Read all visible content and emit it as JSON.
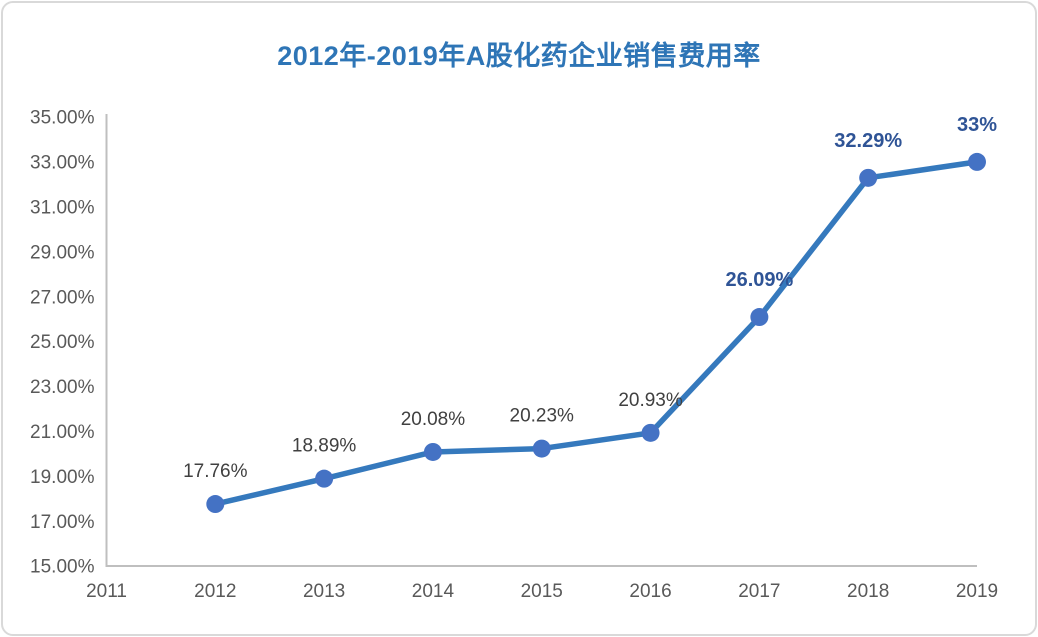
{
  "chart_data": {
    "type": "line",
    "title": "2012年-2019年A股化药企业销售费用率",
    "x_tick_labels": [
      "2011",
      "2012",
      "2013",
      "2014",
      "2015",
      "2016",
      "2017",
      "2018",
      "2019"
    ],
    "y_tick_labels": [
      "35.00%",
      "33.00%",
      "31.00%",
      "29.00%",
      "27.00%",
      "25.00%",
      "23.00%",
      "21.00%",
      "19.00%",
      "17.00%",
      "15.00%"
    ],
    "ylim": [
      15,
      35
    ],
    "y_step": 2,
    "grid": false,
    "legend": false,
    "series": [
      {
        "points": [
          {
            "x": "2012",
            "y": 17.76,
            "label": "17.76%",
            "emphasized": false
          },
          {
            "x": "2013",
            "y": 18.89,
            "label": "18.89%",
            "emphasized": false
          },
          {
            "x": "2014",
            "y": 20.08,
            "label": "20.08%",
            "emphasized": false
          },
          {
            "x": "2015",
            "y": 20.23,
            "label": "20.23%",
            "emphasized": false
          },
          {
            "x": "2016",
            "y": 20.93,
            "label": "20.93%",
            "emphasized": false
          },
          {
            "x": "2017",
            "y": 26.09,
            "label": "26.09%",
            "emphasized": true
          },
          {
            "x": "2018",
            "y": 32.29,
            "label": "32.29%",
            "emphasized": true
          },
          {
            "x": "2019",
            "y": 33.0,
            "label": "33%",
            "emphasized": true
          }
        ]
      }
    ],
    "colors": {
      "title": "#2e75b6",
      "line": "#3579bd",
      "marker": "#4472c4",
      "label_default": "#404040",
      "label_emphasized": "#2f5496",
      "axis_text": "#595959",
      "axis_line": "#bfbfbf",
      "border": "#d9d9d9"
    }
  }
}
